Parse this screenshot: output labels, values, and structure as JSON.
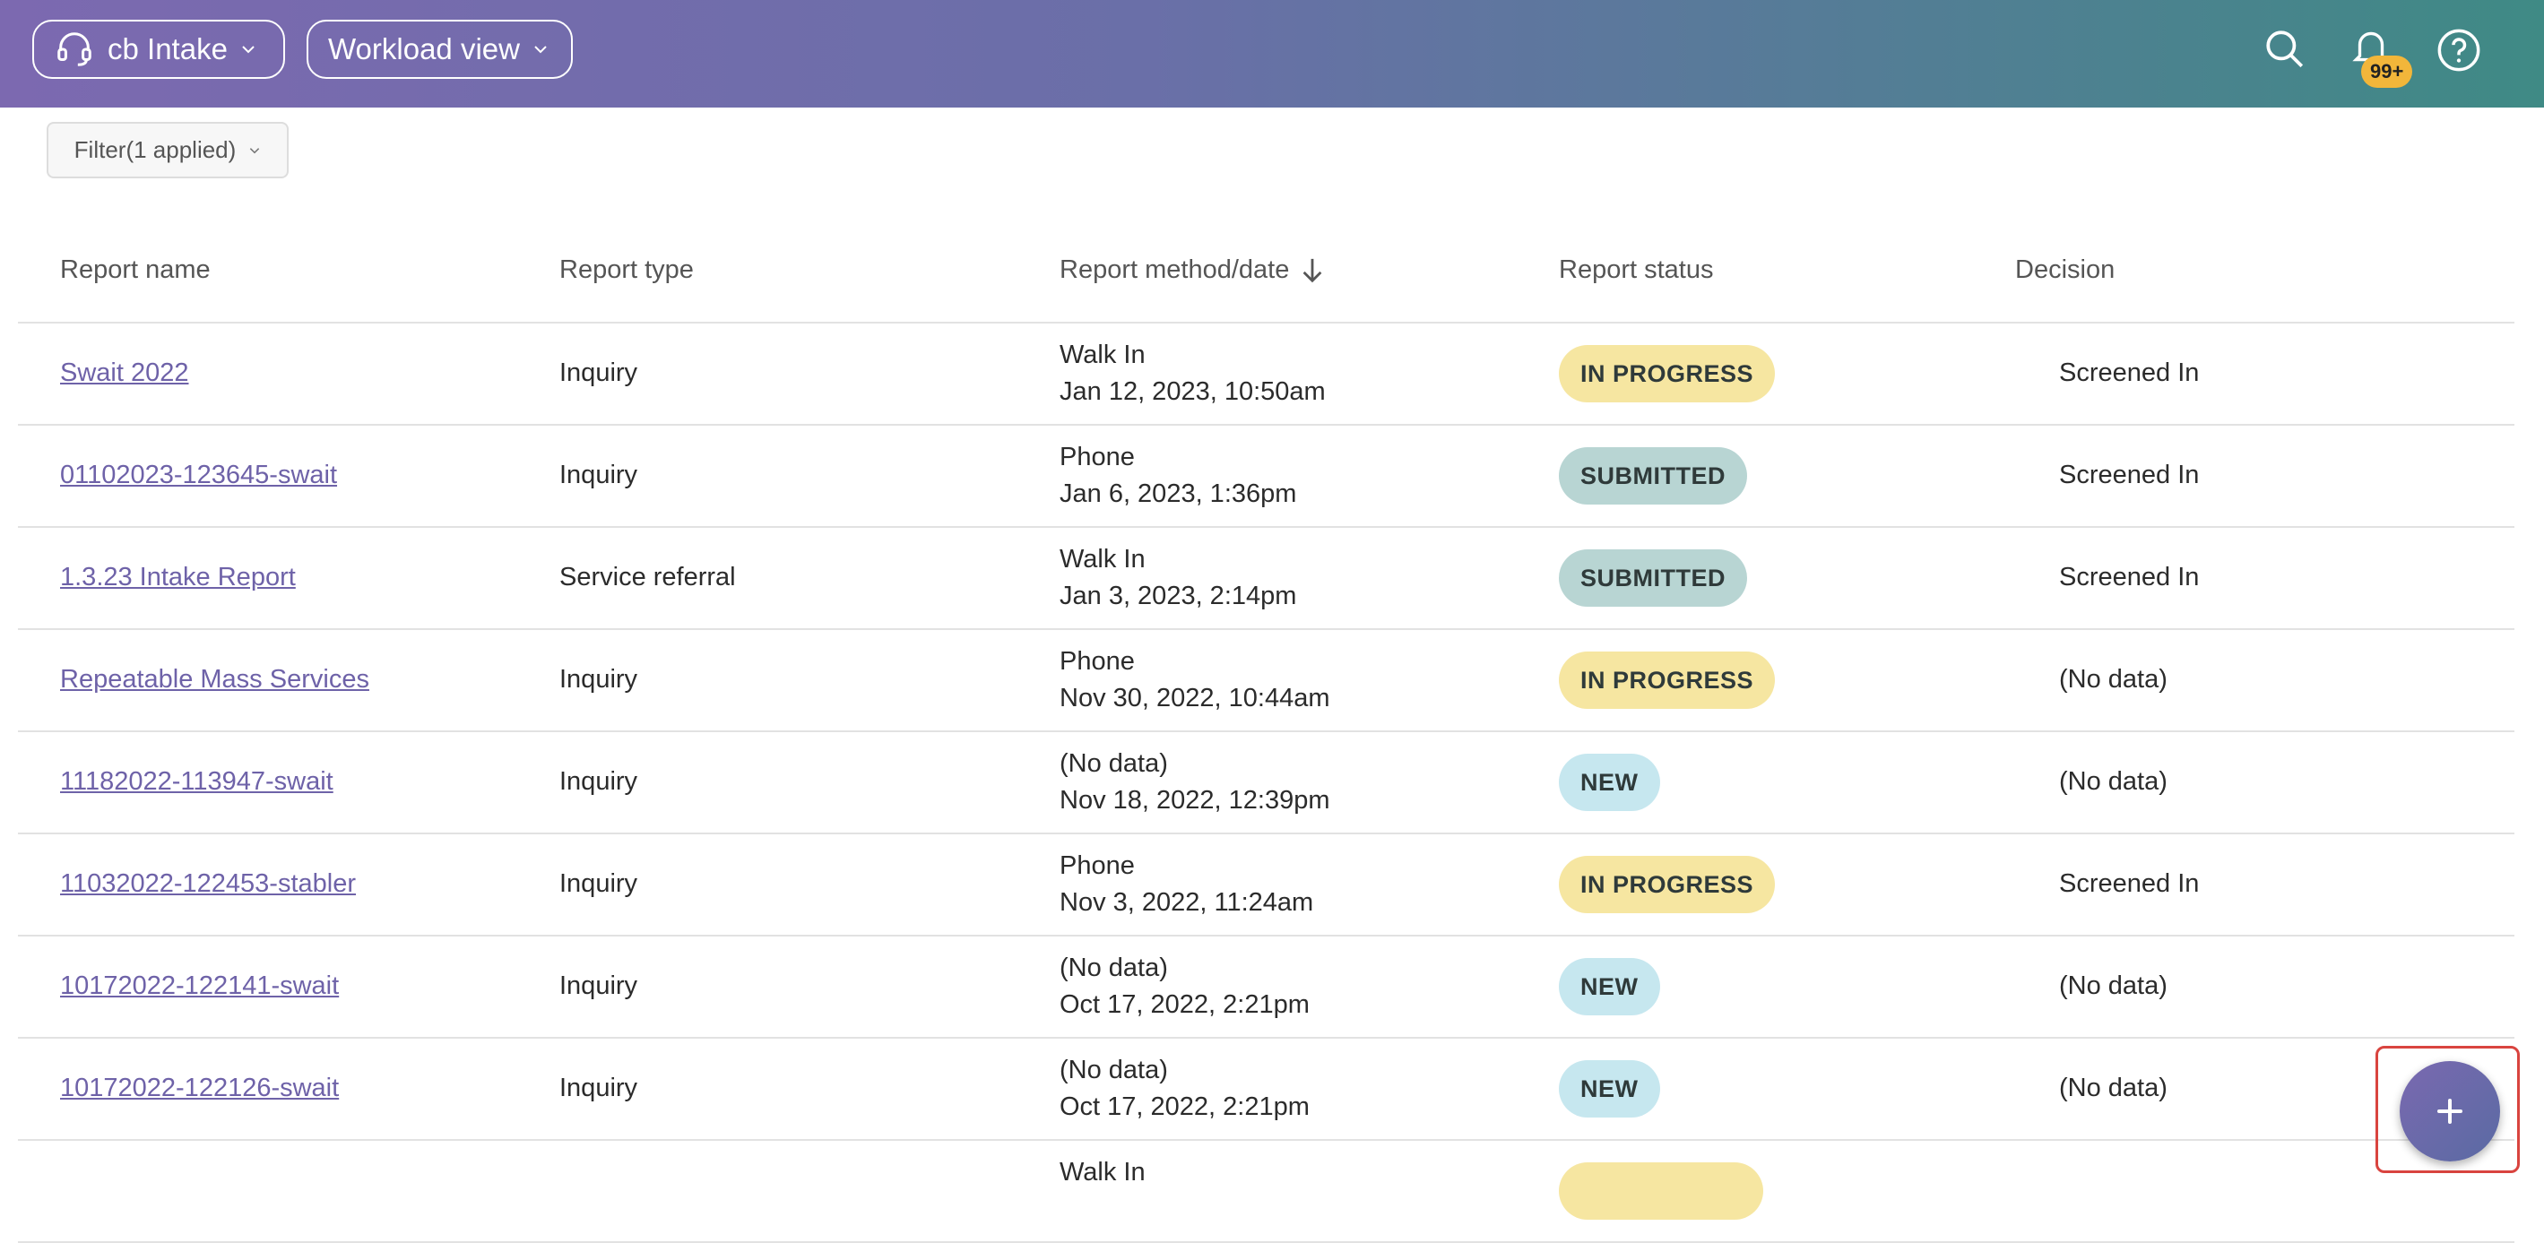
{
  "header": {
    "workspace": "cb Intake",
    "view": "Workload view",
    "notification_badge": "99+"
  },
  "filter": "Filter(1 applied)",
  "table": {
    "columns": [
      "Report name",
      "Report type",
      "Report method/date",
      "Report status",
      "Decision"
    ],
    "rows": [
      {
        "name": "Swait 2022",
        "type": "Inquiry",
        "method": "Walk In",
        "date": "Jan 12, 2023, 10:50am",
        "status": "IN PROGRESS",
        "status_color": "#f6e6a1",
        "decision": "Screened In"
      },
      {
        "name": "01102023-123645-swait",
        "type": "Inquiry",
        "method": "Phone",
        "date": "Jan 6, 2023, 1:36pm",
        "status": "SUBMITTED",
        "status_color": "#b8d5d3",
        "decision": "Screened In"
      },
      {
        "name": "1.3.23 Intake Report",
        "type": "Service referral",
        "method": "Walk In",
        "date": "Jan 3, 2023, 2:14pm",
        "status": "SUBMITTED",
        "status_color": "#b8d5d3",
        "decision": "Screened In"
      },
      {
        "name": "Repeatable Mass Services",
        "type": "Inquiry",
        "method": "Phone",
        "date": "Nov 30, 2022, 10:44am",
        "status": "IN PROGRESS",
        "status_color": "#f6e6a1",
        "decision": "(No data)"
      },
      {
        "name": "11182022-113947-swait",
        "type": "Inquiry",
        "method": "(No data)",
        "date": "Nov 18, 2022, 12:39pm",
        "status": "NEW",
        "status_color": "#c6e7ef",
        "decision": "(No data)"
      },
      {
        "name": "11032022-122453-stabler",
        "type": "Inquiry",
        "method": "Phone",
        "date": "Nov 3, 2022, 11:24am",
        "status": "IN PROGRESS",
        "status_color": "#f6e6a1",
        "decision": "Screened In"
      },
      {
        "name": "10172022-122141-swait",
        "type": "Inquiry",
        "method": "(No data)",
        "date": "Oct 17, 2022, 2:21pm",
        "status": "NEW",
        "status_color": "#c6e7ef",
        "decision": "(No data)"
      },
      {
        "name": "10172022-122126-swait",
        "type": "Inquiry",
        "method": "(No data)",
        "date": "Oct 17, 2022, 2:21pm",
        "status": "NEW",
        "status_color": "#c6e7ef",
        "decision": "(No data)"
      },
      {
        "method": "Walk In",
        "status_color": "#f6e6a1"
      }
    ]
  }
}
